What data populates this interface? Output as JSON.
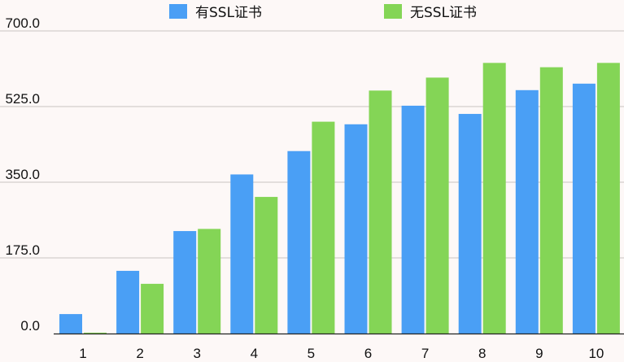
{
  "chart_data": {
    "type": "bar",
    "title": "",
    "xlabel": "",
    "ylabel": "",
    "categories": [
      "1",
      "2",
      "3",
      "4",
      "5",
      "6",
      "7",
      "8",
      "9",
      "10"
    ],
    "series": [
      {
        "name": "有SSL证书",
        "color": "#4a9ff5",
        "values": [
          45,
          145,
          237,
          368,
          422,
          484,
          527,
          508,
          563,
          578
        ]
      },
      {
        "name": "无SSL证书",
        "color": "#84d556",
        "values": [
          2,
          115,
          242,
          316,
          490,
          562,
          592,
          626,
          616,
          626
        ]
      }
    ],
    "ylim": [
      0,
      700
    ],
    "yticks": [
      "0.0",
      "175.0",
      "350.0",
      "525.0",
      "700.0"
    ],
    "grid": true,
    "legend_position": "top"
  }
}
